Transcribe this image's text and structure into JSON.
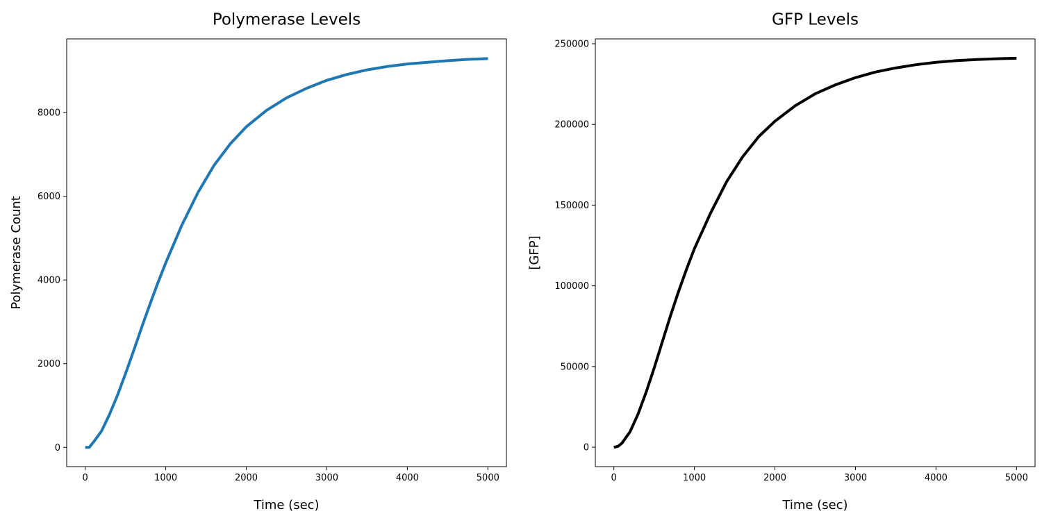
{
  "chart_data": [
    {
      "type": "line",
      "title": "Polymerase Levels",
      "xlabel": "Time (sec)",
      "ylabel": "Polymerase Count",
      "xlim": [
        -230,
        5230
      ],
      "ylim": [
        -460,
        9760
      ],
      "xticks": [
        0,
        1000,
        2000,
        3000,
        4000,
        5000
      ],
      "yticks": [
        0,
        2000,
        4000,
        6000,
        8000
      ],
      "grid": false,
      "series": [
        {
          "color": "#1f77b4",
          "x": [
            0,
            50,
            100,
            200,
            300,
            400,
            500,
            600,
            700,
            800,
            900,
            1000,
            1200,
            1400,
            1600,
            1800,
            2000,
            2250,
            2500,
            2750,
            3000,
            3250,
            3500,
            3750,
            4000,
            4250,
            4500,
            4750,
            5000
          ],
          "y": [
            0,
            0,
            120,
            380,
            780,
            1240,
            1760,
            2300,
            2860,
            3400,
            3920,
            4410,
            5310,
            6090,
            6740,
            7250,
            7660,
            8050,
            8350,
            8580,
            8770,
            8910,
            9020,
            9100,
            9160,
            9200,
            9240,
            9270,
            9290
          ]
        }
      ]
    },
    {
      "type": "line",
      "title": "GFP Levels",
      "xlabel": "Time (sec)",
      "ylabel": "[GFP]",
      "xlim": [
        -230,
        5230
      ],
      "ylim": [
        -12000,
        253000
      ],
      "xticks": [
        0,
        1000,
        2000,
        3000,
        4000,
        5000
      ],
      "yticks": [
        0,
        50000,
        100000,
        150000,
        200000,
        250000
      ],
      "grid": false,
      "series": [
        {
          "color": "#000000",
          "x": [
            0,
            50,
            100,
            200,
            300,
            400,
            500,
            600,
            700,
            800,
            900,
            1000,
            1200,
            1400,
            1600,
            1800,
            2000,
            2250,
            2500,
            2750,
            3000,
            3250,
            3500,
            3750,
            4000,
            4250,
            4500,
            4750,
            5000
          ],
          "y": [
            0,
            500,
            2500,
            9500,
            20500,
            34000,
            49000,
            65000,
            81000,
            96000,
            110000,
            123000,
            145000,
            164500,
            180000,
            192500,
            202000,
            211500,
            219000,
            224500,
            229000,
            232500,
            235000,
            237000,
            238500,
            239500,
            240200,
            240700,
            241000
          ]
        }
      ]
    }
  ]
}
